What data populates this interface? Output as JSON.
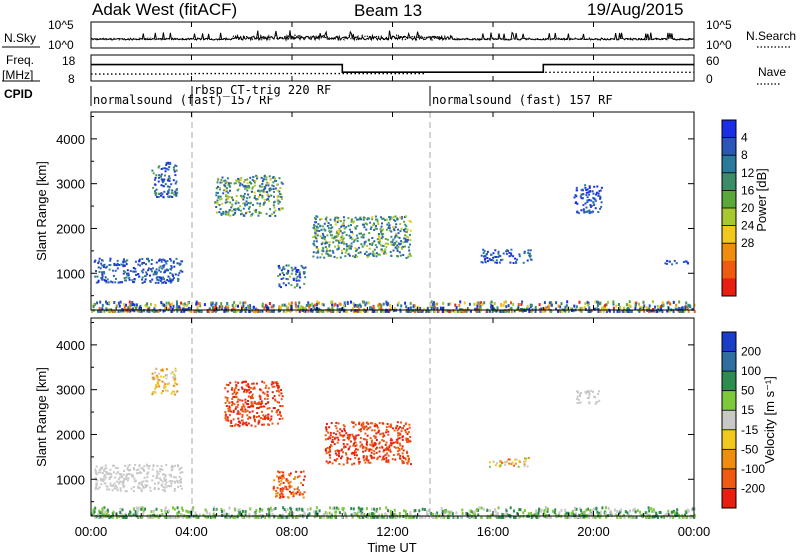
{
  "header": {
    "radar": "Adak West (fitACF)",
    "beam": "Beam 13",
    "date": "19/Aug/2015"
  },
  "nsky": {
    "label": "N.Sky",
    "ytick_top": "10^5",
    "ytick_bottom": "10^0",
    "right_label": "N.Search",
    "right_tick_top": "10^5",
    "right_tick_bottom": "10^0"
  },
  "freq": {
    "label_line1": "Freq.",
    "label_line2": "[MHz]",
    "ytick_top": "18",
    "ytick_bottom": "8",
    "right_label": "Nave",
    "right_tick_top": "60",
    "right_tick_bottom": "0",
    "freq_mhz": [
      {
        "start": 0,
        "end": 10,
        "value": 14.3
      },
      {
        "start": 10,
        "end": 18,
        "value": 11.4
      },
      {
        "start": 18,
        "end": 24,
        "value": 14.3
      }
    ],
    "nave": [
      {
        "start": 0,
        "end": 4,
        "value": 16
      },
      {
        "start": 4,
        "end": 13.3,
        "value": 17
      },
      {
        "start": 13.3,
        "end": 24,
        "value": 20
      }
    ]
  },
  "cpid": {
    "label": "CPID",
    "segments": [
      {
        "name": "normalsound (fast) 157 RF",
        "start": 0,
        "end": 4
      },
      {
        "name": "rbsp_CT-trig 220 RF",
        "start": 4,
        "end": 13.3
      },
      {
        "name": "normalsound (fast) 157 RF",
        "start": 13.3,
        "end": 24
      }
    ]
  },
  "panels": {
    "power": {
      "ylabel": "Slant Range [km]",
      "cbar_label": "Power [dB]"
    },
    "velocity": {
      "ylabel": "Slant Range [km]",
      "cbar_label": "Velocity [m s⁻¹]"
    }
  },
  "xaxis": {
    "label": "Time UT",
    "ticks": [
      "00:00",
      "04:00",
      "08:00",
      "12:00",
      "16:00",
      "20:00",
      "00:00"
    ]
  },
  "chart_data": [
    {
      "type": "heatmap",
      "title": "Power",
      "xlabel": "Time UT",
      "ylabel": "Slant Range [km]",
      "xlim": [
        0,
        24
      ],
      "ylim": [
        180,
        4600
      ],
      "y_ticks": [
        1000,
        2000,
        3000,
        4000
      ],
      "colorbar": {
        "label": "Power [dB]",
        "ticks": [
          "4",
          "8",
          "12",
          "16",
          "20",
          "24",
          "28"
        ],
        "colors": [
          "#1a2ee8",
          "#2a56b8",
          "#2a7a9e",
          "#3c8c6a",
          "#5aa83a",
          "#a8c830",
          "#f0c81e",
          "#f08c10",
          "#ee5a10",
          "#e81e10"
        ]
      },
      "echo_regions": [
        {
          "t_start": 0.1,
          "t_end": 3.6,
          "r_start": 800,
          "r_end": 1350,
          "level": "4-12 dB"
        },
        {
          "t_start": 2.4,
          "t_end": 3.4,
          "r_start": 2700,
          "r_end": 3500,
          "level": "4-16 dB"
        },
        {
          "t_start": 4.9,
          "t_end": 7.6,
          "r_start": 2300,
          "r_end": 3200,
          "level": "8-20 dB"
        },
        {
          "t_start": 7.4,
          "t_end": 8.5,
          "r_start": 700,
          "r_end": 1200,
          "level": "4-16 dB"
        },
        {
          "t_start": 8.8,
          "t_end": 12.7,
          "r_start": 1350,
          "r_end": 2300,
          "level": "4-20 dB"
        },
        {
          "t_start": 15.5,
          "t_end": 17.5,
          "r_start": 1250,
          "r_end": 1550,
          "level": "4-12 dB"
        },
        {
          "t_start": 19.2,
          "t_end": 20.3,
          "r_start": 2350,
          "r_end": 3000,
          "level": "4-12 dB"
        },
        {
          "t_start": 22.8,
          "t_end": 23.8,
          "r_start": 1220,
          "r_end": 1320,
          "level": "4-8 dB"
        },
        {
          "t_start": 0,
          "t_end": 24,
          "r_start": 180,
          "r_end": 400,
          "level": "4-28 dB"
        }
      ]
    },
    {
      "type": "heatmap",
      "title": "Velocity",
      "xlabel": "Time UT",
      "ylabel": "Slant Range [km]",
      "xlim": [
        0,
        24
      ],
      "ylim": [
        180,
        4600
      ],
      "y_ticks": [
        1000,
        2000,
        3000,
        4000
      ],
      "colorbar": {
        "label": "Velocity [m s⁻¹]",
        "ticks": [
          "200",
          "100",
          "50",
          "15",
          "-15",
          "-50",
          "-100",
          "-200"
        ],
        "colors": [
          "#1a3cc8",
          "#2e6ea0",
          "#2e8c50",
          "#7ec83c",
          "#c8c8c8",
          "#f0c81e",
          "#f08c10",
          "#ee5a10",
          "#e81e10"
        ]
      },
      "echo_regions": [
        {
          "t_start": 0.1,
          "t_end": 3.6,
          "r_start": 750,
          "r_end": 1350,
          "level": "-15 to 15 m/s"
        },
        {
          "t_start": 2.4,
          "t_end": 3.4,
          "r_start": 2900,
          "r_end": 3500,
          "level": "-50 to 15 m/s"
        },
        {
          "t_start": 5.3,
          "t_end": 7.6,
          "r_start": 2200,
          "r_end": 3200,
          "level": "-200 to -100 m/s"
        },
        {
          "t_start": 7.2,
          "t_end": 8.5,
          "r_start": 600,
          "r_end": 1200,
          "level": "-200 to -50 m/s"
        },
        {
          "t_start": 9.3,
          "t_end": 12.7,
          "r_start": 1350,
          "r_end": 2300,
          "level": "-200 to -100 m/s"
        },
        {
          "t_start": 15.8,
          "t_end": 17.4,
          "r_start": 1300,
          "r_end": 1500,
          "level": "-100 to 50 m/s"
        },
        {
          "t_start": 19.3,
          "t_end": 20.2,
          "r_start": 2700,
          "r_end": 3000,
          "level": "-15 to 15 m/s"
        },
        {
          "t_start": 0,
          "t_end": 24,
          "r_start": 180,
          "r_end": 400,
          "level": "15 to 50 m/s"
        }
      ]
    }
  ]
}
